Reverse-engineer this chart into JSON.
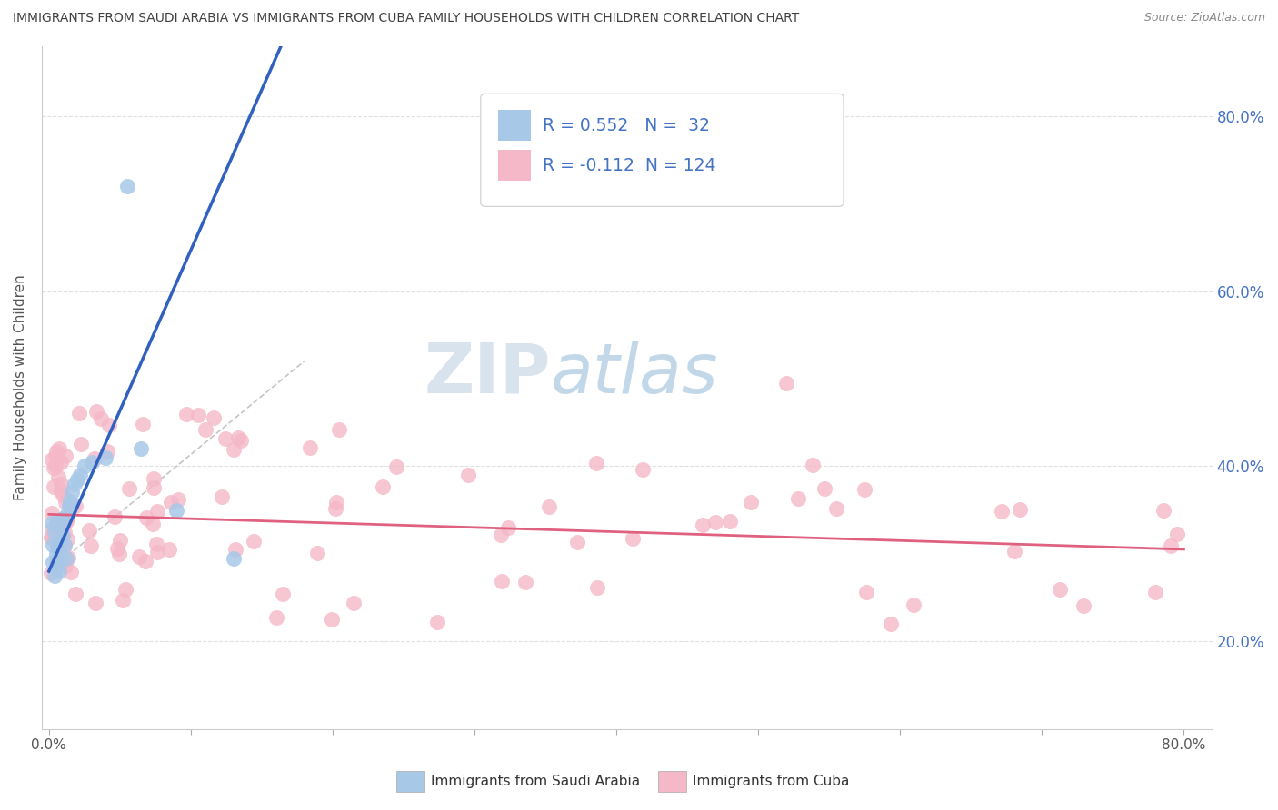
{
  "title": "IMMIGRANTS FROM SAUDI ARABIA VS IMMIGRANTS FROM CUBA FAMILY HOUSEHOLDS WITH CHILDREN CORRELATION CHART",
  "source": "Source: ZipAtlas.com",
  "ylabel": "Family Households with Children",
  "xlim": [
    -0.005,
    0.82
  ],
  "ylim": [
    0.1,
    0.88
  ],
  "xticks": [
    0.0,
    0.1,
    0.2,
    0.3,
    0.4,
    0.5,
    0.6,
    0.7,
    0.8
  ],
  "ytick_positions": [
    0.2,
    0.4,
    0.6,
    0.8
  ],
  "ytick_labels": [
    "20.0%",
    "40.0%",
    "60.0%",
    "80.0%"
  ],
  "saudi_color": "#a8c8e8",
  "cuba_color": "#f4b8c8",
  "saudi_line_color": "#3060c0",
  "cuba_line_color": "#e06080",
  "dash_color": "#bbbbbb",
  "saudi_R": 0.552,
  "saudi_N": 32,
  "cuba_R": -0.112,
  "cuba_N": 124,
  "legend_label_saudi": "Immigrants from Saudi Arabia",
  "legend_label_cuba": "Immigrants from Cuba",
  "watermark_zip": "ZIP",
  "watermark_atlas": "atlas",
  "right_tick_color": "#4472c4",
  "background_color": "#ffffff",
  "grid_color": "#dddddd",
  "title_color": "#404040",
  "source_color": "#888888",
  "legend_text_color": "#4472c4"
}
